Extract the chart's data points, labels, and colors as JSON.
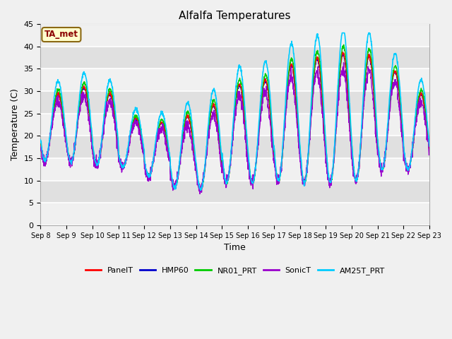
{
  "title": "Alfalfa Temperatures",
  "xlabel": "Time",
  "ylabel": "Temperature (C)",
  "ylim": [
    0,
    45
  ],
  "yticks": [
    0,
    5,
    10,
    15,
    20,
    25,
    30,
    35,
    40,
    45
  ],
  "annotation": "TA_met",
  "annotation_color": "#8B0000",
  "annotation_box_color": "#FFFFCC",
  "series": {
    "PanelT": {
      "color": "#FF0000",
      "lw": 1.0
    },
    "HMP60": {
      "color": "#0000CD",
      "lw": 1.0
    },
    "NR01_PRT": {
      "color": "#00CC00",
      "lw": 1.0
    },
    "SonicT": {
      "color": "#9900CC",
      "lw": 1.0
    },
    "AM25T_PRT": {
      "color": "#00CCFF",
      "lw": 1.2
    }
  },
  "band_colors": [
    "#F0F0F0",
    "#E0E0E0"
  ],
  "spine_color": "#AAAAAA",
  "xtick_labels": [
    "Sep 8",
    "Sep 9",
    "Sep 10",
    "Sep 11",
    "Sep 12",
    "Sep 13",
    "Sep 14",
    "Sep 15",
    "Sep 16",
    "Sep 17",
    "Sep 18",
    "Sep 19",
    "Sep 20",
    "Sep 21",
    "Sep 22",
    "Sep 23"
  ],
  "n_points": 2000,
  "day_amplitudes": [
    7.5,
    8.5,
    8.0,
    5.5,
    6.0,
    8.0,
    9.5,
    11.0,
    11.5,
    13.0,
    14.0,
    14.5,
    14.0,
    11.0,
    8.5
  ],
  "day_minimums": [
    14.5,
    14.0,
    13.5,
    13.0,
    11.0,
    8.5,
    8.0,
    9.5,
    9.5,
    10.0,
    9.5,
    9.5,
    10.0,
    12.5,
    12.5
  ]
}
